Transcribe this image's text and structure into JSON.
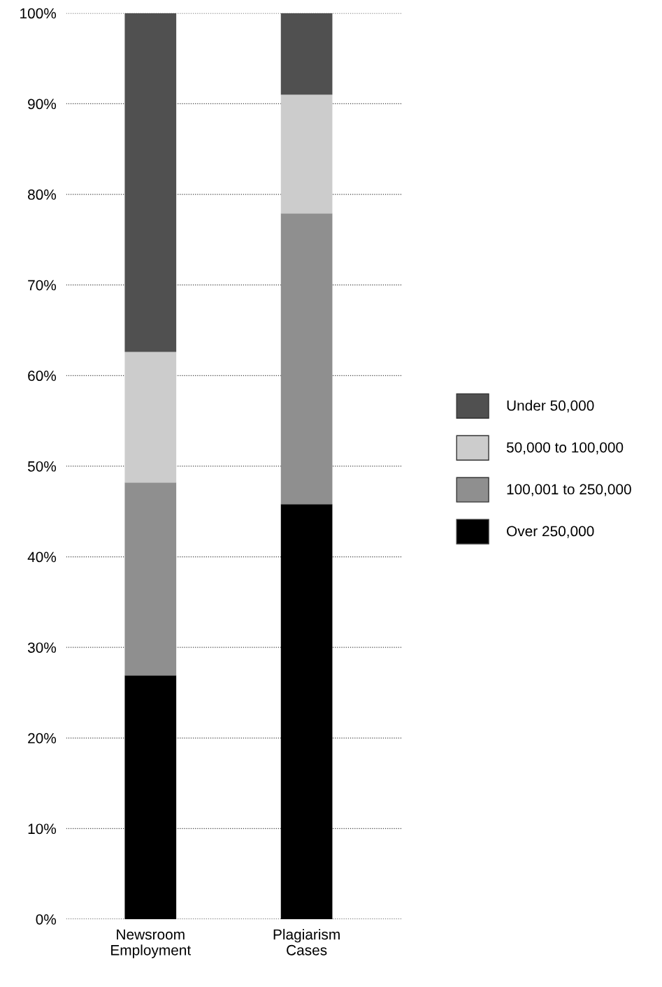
{
  "chart_data": {
    "type": "bar",
    "stacked": true,
    "categories": [
      "Newsroom\nEmployment",
      "Plagiarism\nCases"
    ],
    "series": [
      {
        "name": "Over 250,000",
        "color": "#000000",
        "values": [
          26.9,
          45.8
        ]
      },
      {
        "name": "100,001 to 250,000",
        "color": "#8f8f8f",
        "values": [
          21.3,
          32.1
        ]
      },
      {
        "name": "50,000 to 100,000",
        "color": "#cccccc",
        "values": [
          14.4,
          13.1
        ]
      },
      {
        "name": "Under 50,000",
        "color": "#505050",
        "values": [
          37.4,
          9.0
        ]
      }
    ],
    "ylim": [
      0,
      100
    ],
    "yticks": [
      {
        "value": 0,
        "label": "0%"
      },
      {
        "value": 10,
        "label": "10%"
      },
      {
        "value": 20,
        "label": "20%"
      },
      {
        "value": 30,
        "label": "30%"
      },
      {
        "value": 40,
        "label": "40%"
      },
      {
        "value": 50,
        "label": "50%"
      },
      {
        "value": 60,
        "label": "60%"
      },
      {
        "value": 70,
        "label": "70%"
      },
      {
        "value": 80,
        "label": "80%"
      },
      {
        "value": 90,
        "label": "90%"
      },
      {
        "value": 100,
        "label": "100%"
      }
    ],
    "grid": "y",
    "legend": "right"
  }
}
